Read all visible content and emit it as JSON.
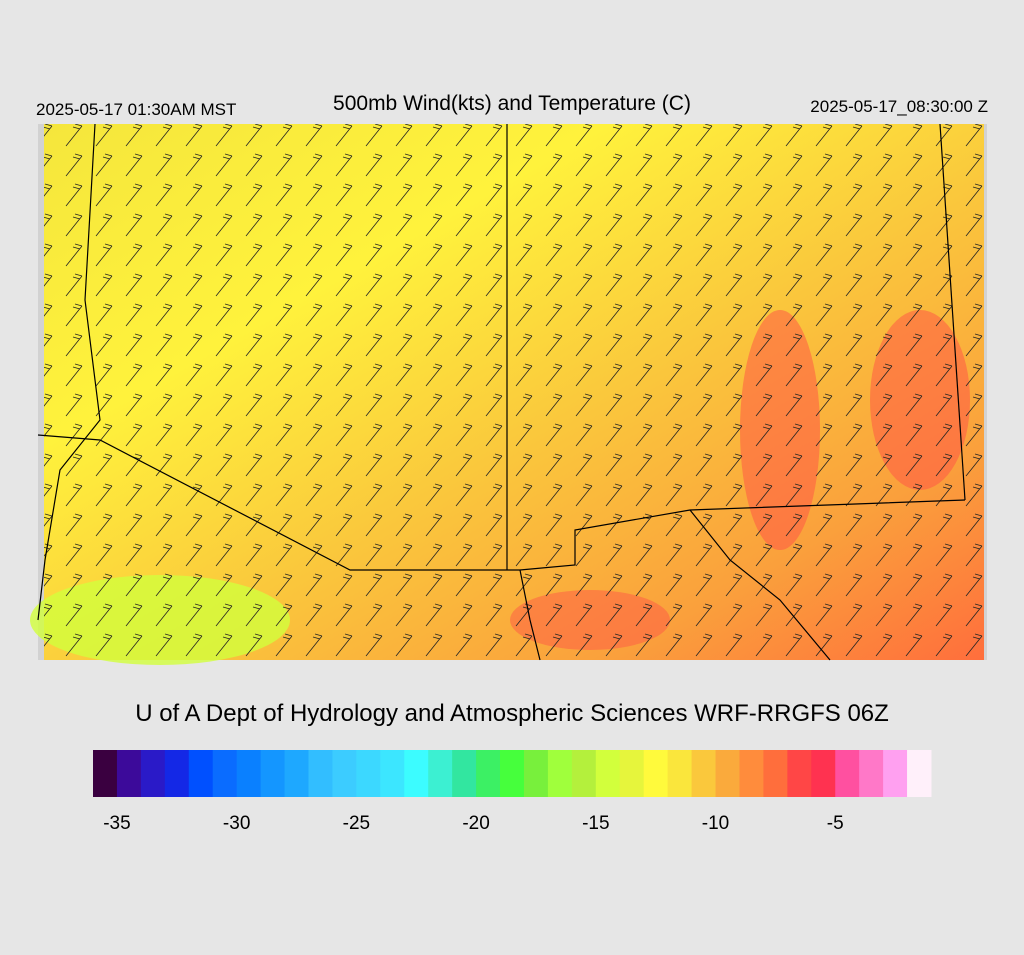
{
  "header": {
    "left": "2025-05-17 01:30AM MST",
    "title": "500mb Wind(kts) and Temperature (C)",
    "right": "2025-05-17_08:30:00 Z"
  },
  "credit": "U of A Dept of Hydrology and Atmospheric Sciences WRF-RRGFS 06Z",
  "colorbar": {
    "min": -36,
    "max": -1,
    "colors": [
      "#3a0040",
      "#3c0a9a",
      "#2a1ac8",
      "#1428e6",
      "#0050ff",
      "#0a6cff",
      "#0a80ff",
      "#1496ff",
      "#1ea8ff",
      "#32beff",
      "#3cccff",
      "#3cd8ff",
      "#3ce6ff",
      "#3cfcff",
      "#3cf0d2",
      "#32e6a0",
      "#3cf064",
      "#46ff3c",
      "#78f03c",
      "#a0ff3c",
      "#b4f03c",
      "#d2ff3c",
      "#e6f53c",
      "#fffa3c",
      "#fae63c",
      "#fac83c",
      "#faaa3c",
      "#ff8c3c",
      "#ff6e3c",
      "#ff4646",
      "#ff3250",
      "#ff50a0",
      "#ff78c8",
      "#ffa0f0",
      "#fff0fa"
    ],
    "ticks": [
      -35,
      -30,
      -25,
      -20,
      -15,
      -10,
      -5
    ]
  }
}
